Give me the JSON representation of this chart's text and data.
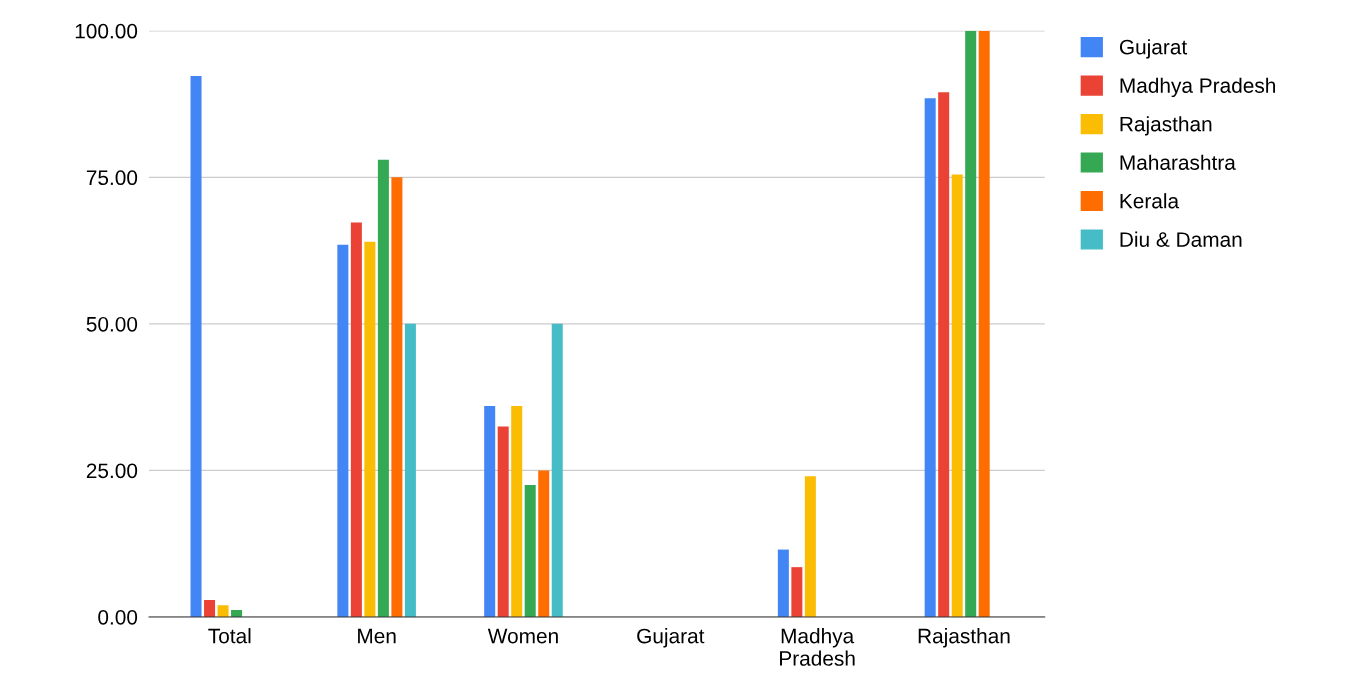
{
  "chart_data": {
    "type": "bar",
    "categories": [
      "Total",
      "Men",
      "Women",
      "Gujarat",
      "Madhya\nPradesh",
      "Rajasthan"
    ],
    "series": [
      {
        "name": "Gujarat",
        "color": "#4285f4",
        "values": [
          92.3,
          63.5,
          36,
          null,
          11.5,
          88.5
        ]
      },
      {
        "name": "Madhya Pradesh",
        "color": "#ea4335",
        "values": [
          2.9,
          67.3,
          32.5,
          null,
          8.5,
          89.5
        ]
      },
      {
        "name": "Rajasthan",
        "color": "#fbbc04",
        "values": [
          2.0,
          64,
          36,
          null,
          24,
          75.5
        ]
      },
      {
        "name": "Maharashtra",
        "color": "#34a853",
        "values": [
          1.2,
          78,
          22.5,
          null,
          null,
          100
        ]
      },
      {
        "name": "Kerala",
        "color": "#ff6d01",
        "values": [
          null,
          75,
          25,
          null,
          null,
          100
        ]
      },
      {
        "name": "Diu & Daman",
        "color": "#46bdc6",
        "values": [
          null,
          50,
          50,
          null,
          null,
          null
        ]
      }
    ],
    "ylim": [
      0,
      100
    ],
    "yticks": [
      {
        "value": 0,
        "label": "0.00"
      },
      {
        "value": 25,
        "label": "25.00"
      },
      {
        "value": 50,
        "label": "50.00"
      },
      {
        "value": 75,
        "label": "75.00"
      },
      {
        "value": 100,
        "label": "100.00"
      }
    ],
    "grid": "y",
    "legend": "top right"
  }
}
